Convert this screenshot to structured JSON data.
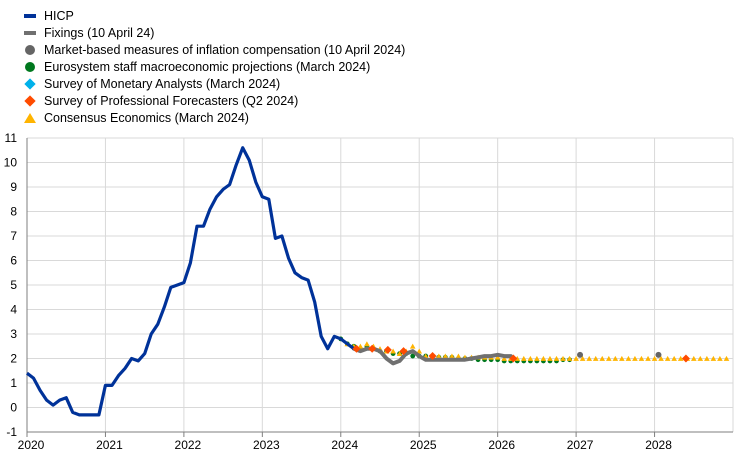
{
  "chart_data": {
    "type": "line",
    "title": "",
    "xlabel": "",
    "ylabel": "",
    "xlim": [
      2020,
      2029
    ],
    "ylim": [
      -1,
      11
    ],
    "yticks": [
      -1,
      0,
      1,
      2,
      3,
      4,
      5,
      6,
      7,
      8,
      9,
      10,
      11
    ],
    "xticks": [
      "2020",
      "2021",
      "2022",
      "2023",
      "2024",
      "2025",
      "2026",
      "2027",
      "2028"
    ],
    "grid": true,
    "legend_position": "top-left",
    "series": [
      {
        "name": "HICP",
        "style": "line",
        "color": "#003299",
        "x": [
          2020.0,
          2020.083,
          2020.167,
          2020.25,
          2020.333,
          2020.417,
          2020.5,
          2020.583,
          2020.667,
          2020.75,
          2020.833,
          2020.917,
          2021.0,
          2021.083,
          2021.167,
          2021.25,
          2021.333,
          2021.417,
          2021.5,
          2021.583,
          2021.667,
          2021.75,
          2021.833,
          2021.917,
          2022.0,
          2022.083,
          2022.167,
          2022.25,
          2022.333,
          2022.417,
          2022.5,
          2022.583,
          2022.667,
          2022.75,
          2022.833,
          2022.917,
          2023.0,
          2023.083,
          2023.167,
          2023.25,
          2023.333,
          2023.417,
          2023.5,
          2023.583,
          2023.667,
          2023.75,
          2023.833,
          2023.917,
          2024.0,
          2024.083,
          2024.167
        ],
        "y": [
          1.4,
          1.2,
          0.7,
          0.3,
          0.1,
          0.3,
          0.4,
          -0.2,
          -0.3,
          -0.3,
          -0.3,
          -0.3,
          0.9,
          0.9,
          1.3,
          1.6,
          2.0,
          1.9,
          2.2,
          3.0,
          3.4,
          4.1,
          4.9,
          5.0,
          5.1,
          5.9,
          7.4,
          7.4,
          8.1,
          8.6,
          8.9,
          9.1,
          9.9,
          10.6,
          10.1,
          9.2,
          8.6,
          8.5,
          6.9,
          7.0,
          6.1,
          5.5,
          5.3,
          5.2,
          4.3,
          2.9,
          2.4,
          2.9,
          2.8,
          2.6,
          2.4
        ]
      },
      {
        "name": "Fixings (10 April 24)",
        "style": "thick-line",
        "color": "#707070",
        "x": [
          2024.167,
          2024.25,
          2024.333,
          2024.417,
          2024.5,
          2024.583,
          2024.667,
          2024.75,
          2024.833,
          2024.917,
          2025.0,
          2025.083,
          2025.167,
          2025.25,
          2025.333,
          2025.417,
          2025.5,
          2025.583,
          2025.667,
          2025.75,
          2025.833,
          2025.917,
          2026.0,
          2026.083,
          2026.167
        ],
        "y": [
          2.4,
          2.3,
          2.4,
          2.4,
          2.3,
          2.0,
          1.8,
          1.9,
          2.2,
          2.3,
          2.1,
          1.95,
          1.95,
          1.95,
          1.95,
          1.95,
          1.95,
          1.95,
          2.0,
          2.05,
          2.1,
          2.1,
          2.15,
          2.1,
          2.1
        ]
      },
      {
        "name": "Market-based measures of inflation compensation (10 April 2024)",
        "style": "marker-circle",
        "color": "#656565",
        "x": [
          2027.05,
          2028.05
        ],
        "y": [
          2.15,
          2.15
        ]
      },
      {
        "name": "Eurosystem staff macroeconomic projections (March 2024)",
        "style": "dots",
        "color": "#00781e",
        "x": [
          2024.0,
          2024.083,
          2024.167,
          2024.25,
          2024.333,
          2024.417,
          2024.5,
          2024.583,
          2024.667,
          2024.75,
          2024.833,
          2024.917,
          2025.0,
          2025.083,
          2025.167,
          2025.25,
          2025.333,
          2025.417,
          2025.5,
          2025.583,
          2025.667,
          2025.75,
          2025.833,
          2025.917,
          2026.0,
          2026.083,
          2026.167,
          2026.25,
          2026.333,
          2026.417,
          2026.5,
          2026.583,
          2026.667,
          2026.75,
          2026.833,
          2026.917
        ],
        "y": [
          2.8,
          2.6,
          2.5,
          2.4,
          2.5,
          2.4,
          2.3,
          2.3,
          2.2,
          2.2,
          2.2,
          2.1,
          2.1,
          2.1,
          2.1,
          2.05,
          2.05,
          2.05,
          2.0,
          2.0,
          2.0,
          1.95,
          1.95,
          1.95,
          1.95,
          1.9,
          1.9,
          1.9,
          1.9,
          1.9,
          1.9,
          1.9,
          1.9,
          1.9,
          1.95,
          1.95
        ]
      },
      {
        "name": "Survey of Monetary Analysts (March 2024)",
        "style": "marker-diamond",
        "color": "#00b1ea",
        "x": [],
        "y": []
      },
      {
        "name": "Survey of Professional Forecasters (Q2 2024)",
        "style": "marker-diamond",
        "color": "#ff4b00",
        "x": [
          2024.2,
          2024.4,
          2024.6,
          2024.8,
          2025.17,
          2026.2,
          2028.4
        ],
        "y": [
          2.4,
          2.4,
          2.35,
          2.3,
          2.1,
          2.0,
          2.0
        ]
      },
      {
        "name": "Consensus Economics (March 2024)",
        "style": "marker-triangle",
        "color": "#ffb400",
        "x": [
          2024.083,
          2024.167,
          2024.25,
          2024.333,
          2024.417,
          2024.5,
          2024.583,
          2024.667,
          2024.75,
          2024.833,
          2024.917,
          2025.0,
          2025.083,
          2025.167,
          2025.25,
          2025.333,
          2025.417,
          2025.5,
          2025.583,
          2025.667,
          2025.75,
          2025.833,
          2025.917,
          2026.0,
          2026.083,
          2026.167,
          2026.25,
          2026.333,
          2026.417,
          2026.5,
          2026.583,
          2026.667,
          2026.75,
          2026.833,
          2026.917,
          2027.0,
          2027.083,
          2027.167,
          2027.25,
          2027.333,
          2027.417,
          2027.5,
          2027.583,
          2027.667,
          2027.75,
          2027.833,
          2027.917,
          2028.0,
          2028.083,
          2028.167,
          2028.25,
          2028.333,
          2028.417,
          2028.5,
          2028.583,
          2028.667,
          2028.75,
          2028.833,
          2028.917
        ],
        "y": [
          2.6,
          2.5,
          2.5,
          2.6,
          2.5,
          2.4,
          2.3,
          2.3,
          2.2,
          2.3,
          2.5,
          2.3,
          2.1,
          2.1,
          2.1,
          2.1,
          2.1,
          2.1,
          2.05,
          2.05,
          2.05,
          2.05,
          2.05,
          2.05,
          2.0,
          2.0,
          2.0,
          2.0,
          2.0,
          2.0,
          2.0,
          2.0,
          2.0,
          2.0,
          2.0,
          2.0,
          2.0,
          2.0,
          2.0,
          2.0,
          2.0,
          2.0,
          2.0,
          2.0,
          2.0,
          2.0,
          2.0,
          2.0,
          2.0,
          2.0,
          2.0,
          2.0,
          2.0,
          2.0,
          2.0,
          2.0,
          2.0,
          2.0,
          2.0
        ]
      }
    ]
  }
}
